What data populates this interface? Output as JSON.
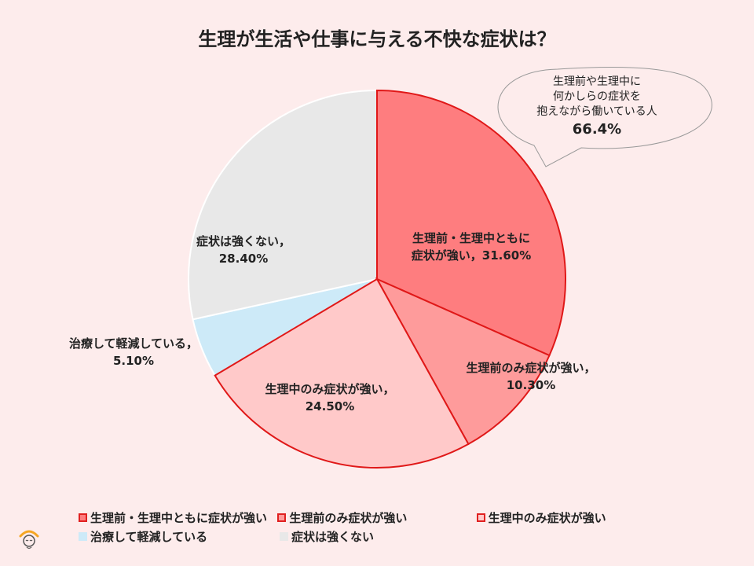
{
  "chart_data": {
    "type": "pie",
    "title": "生理が生活や仕事に与える不快な症状は？",
    "slices": [
      {
        "name": "生理前・生理中ともに症状が強い",
        "label_line1": "生理前・生理中ともに",
        "label_line2": "症状が強い，31.60%",
        "value": 31.6,
        "color": "#fe7d7f",
        "stroke": "#e01818"
      },
      {
        "name": "生理前のみ症状が強い",
        "label_line1": "生理前のみ症状が強い，",
        "label_line2": "10.30%",
        "value": 10.3,
        "color": "#fe9b9b",
        "stroke": "#e01818"
      },
      {
        "name": "生理中のみ症状が強い",
        "label_line1": "生理中のみ症状が強い，",
        "label_line2": "24.50%",
        "value": 24.5,
        "color": "#ffc9c9",
        "stroke": "#e01818"
      },
      {
        "name": "治療して軽減している",
        "label_line1": "治療して軽減している，",
        "label_line2": "5.10%",
        "value": 5.1,
        "color": "#cdeaf8",
        "stroke": "#ffffff"
      },
      {
        "name": "症状は強くない",
        "label_line1": "症状は強くない，",
        "label_line2": "28.40%",
        "value": 28.4,
        "color": "#e8e8e8",
        "stroke": "#ffffff"
      }
    ],
    "legend_position": "bottom"
  },
  "callout": {
    "line1": "生理前や生理中に",
    "line2": "何かしらの症状を",
    "line3": "抱えながら働いている人",
    "value": "66.4%"
  },
  "logo_icon": "face-logo-icon"
}
